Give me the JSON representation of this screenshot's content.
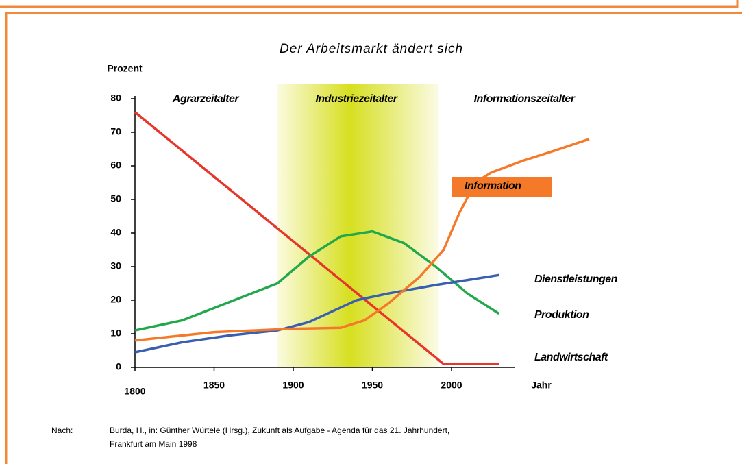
{
  "chart_data": {
    "type": "line",
    "title": "Der Arbeitsmarkt ändert sich",
    "y_label": "Prozent",
    "x_label": "Jahr",
    "xlim": [
      1800,
      2040
    ],
    "xticks": [
      1800,
      1850,
      1900,
      1950,
      2000
    ],
    "ylim": [
      0,
      80
    ],
    "yticks": [
      0,
      10,
      20,
      30,
      40,
      50,
      60,
      70,
      80
    ],
    "eras": [
      {
        "label": "Agrarzeitalter"
      },
      {
        "label": "Industriezeitalter",
        "range": [
          1890,
          1992
        ]
      },
      {
        "label": "Informationszeitalter"
      }
    ],
    "series": [
      {
        "name": "Landwirtschaft",
        "color": "#e8352a",
        "x": [
          1800,
          1995,
          2030
        ],
        "values": [
          76,
          1,
          1
        ]
      },
      {
        "name": "Produktion",
        "color": "#22a84a",
        "x": [
          1800,
          1830,
          1860,
          1890,
          1910,
          1930,
          1950,
          1970,
          1990,
          2010,
          2030
        ],
        "values": [
          11,
          14,
          19.5,
          25,
          33,
          39,
          40.5,
          37,
          30,
          22,
          16
        ]
      },
      {
        "name": "Dienstleistungen",
        "color": "#3a5fb0",
        "x": [
          1800,
          1830,
          1860,
          1890,
          1910,
          1940,
          1960,
          1990,
          2010,
          2030
        ],
        "values": [
          4.5,
          7.5,
          9.5,
          11,
          13.5,
          20,
          22,
          24.5,
          26,
          27.5
        ]
      },
      {
        "name": "Information",
        "color": "#f47a2a",
        "x": [
          1800,
          1850,
          1900,
          1930,
          1945,
          1960,
          1980,
          1995,
          2005,
          2015,
          2025,
          2045,
          2065,
          2087
        ],
        "values": [
          8,
          10.5,
          11.5,
          11.8,
          14,
          19,
          27,
          35,
          46,
          55,
          58,
          61.5,
          64.5,
          68
        ]
      }
    ],
    "source": {
      "prefix": "Nach:",
      "lines": [
        "Burda, H., in: Günther Würtele (Hrsg.), Zukunft als Aufgabe - Agenda für das 21. Jahrhundert,",
        "Frankfurt am Main 1998"
      ]
    }
  }
}
